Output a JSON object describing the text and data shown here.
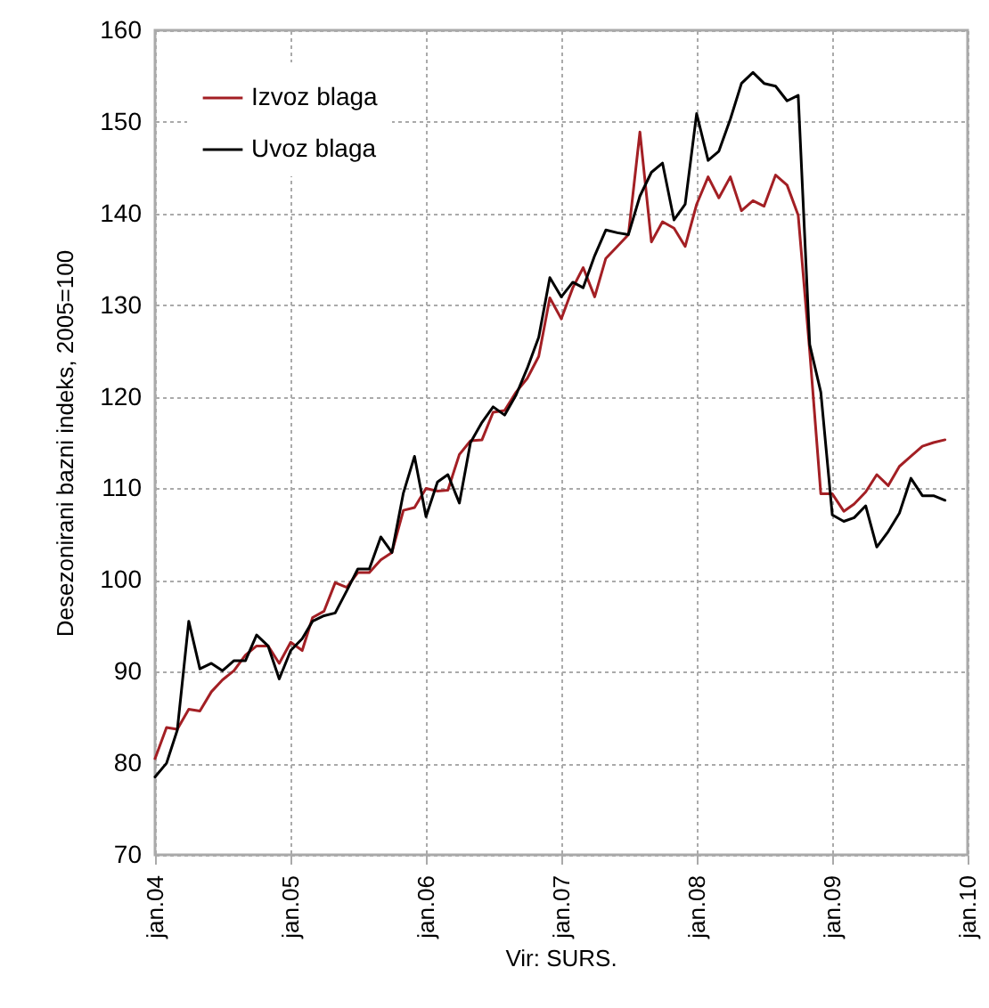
{
  "chart_data": {
    "type": "line",
    "ylabel": "Desezonirani bazni indeks, 2005=100",
    "annotations": [
      "Vir: SURS."
    ],
    "x": [
      "2004-01",
      "2004-02",
      "2004-03",
      "2004-04",
      "2004-05",
      "2004-06",
      "2004-07",
      "2004-08",
      "2004-09",
      "2004-10",
      "2004-11",
      "2004-12",
      "2005-01",
      "2005-02",
      "2005-03",
      "2005-04",
      "2005-05",
      "2005-06",
      "2005-07",
      "2005-08",
      "2005-09",
      "2005-10",
      "2005-11",
      "2005-12",
      "2006-01",
      "2006-02",
      "2006-03",
      "2006-04",
      "2006-05",
      "2006-06",
      "2006-07",
      "2006-08",
      "2006-09",
      "2006-10",
      "2006-11",
      "2006-12",
      "2007-01",
      "2007-02",
      "2007-03",
      "2007-04",
      "2007-05",
      "2007-06",
      "2007-07",
      "2007-08",
      "2007-09",
      "2007-10",
      "2007-11",
      "2007-12",
      "2008-01",
      "2008-02",
      "2008-03",
      "2008-04",
      "2008-05",
      "2008-06",
      "2008-07",
      "2008-08",
      "2008-09",
      "2008-10",
      "2008-11",
      "2008-12",
      "2009-01",
      "2009-02",
      "2009-03",
      "2009-04",
      "2009-05",
      "2009-06",
      "2009-07",
      "2009-08",
      "2009-09",
      "2009-10",
      "2009-11"
    ],
    "series": [
      {
        "name": "Izvoz blaga",
        "color": "#a31f24",
        "values": [
          80.5,
          83.9,
          83.7,
          85.9,
          85.7,
          87.8,
          89.1,
          90.1,
          91.8,
          92.8,
          92.8,
          90.9,
          93.2,
          92.3,
          95.9,
          96.6,
          99.7,
          99.2,
          100.8,
          100.8,
          102.2,
          103.0,
          107.6,
          107.9,
          110.0,
          109.7,
          109.8,
          113.7,
          115.2,
          115.3,
          118.3,
          118.5,
          120.5,
          122.0,
          124.4,
          130.8,
          128.5,
          131.9,
          134.1,
          130.9,
          135.1,
          136.4,
          137.7,
          148.9,
          136.9,
          139.1,
          138.4,
          136.4,
          141.0,
          144.0,
          141.7,
          144.0,
          140.3,
          141.4,
          140.8,
          144.2,
          143.1,
          139.8,
          125.0,
          109.4,
          109.4,
          107.5,
          108.3,
          109.6,
          111.5,
          110.3,
          112.4,
          113.5,
          114.6,
          115.0,
          115.3
        ]
      },
      {
        "name": "Uvoz blaga",
        "color": "#000000",
        "values": [
          78.5,
          80.0,
          83.6,
          95.5,
          90.3,
          90.9,
          90.1,
          91.2,
          91.2,
          94.0,
          92.8,
          89.2,
          92.3,
          93.6,
          95.5,
          96.1,
          96.4,
          98.8,
          101.2,
          101.2,
          104.7,
          103.0,
          109.5,
          113.5,
          106.9,
          110.7,
          111.5,
          108.4,
          115.0,
          117.2,
          118.9,
          118.0,
          120.2,
          123.1,
          126.5,
          133.0,
          130.9,
          132.5,
          131.9,
          135.4,
          138.2,
          137.9,
          137.7,
          141.9,
          144.5,
          145.5,
          139.3,
          141.0,
          150.9,
          145.8,
          146.8,
          150.3,
          154.2,
          155.4,
          154.2,
          153.9,
          152.3,
          152.9,
          125.7,
          120.5,
          107.1,
          106.4,
          106.8,
          108.1,
          103.6,
          105.3,
          107.3,
          111.1,
          109.2,
          109.2,
          108.7
        ]
      }
    ],
    "xlim": [
      "2004-01",
      "2010-01"
    ],
    "xticks": [
      {
        "value": "2004-01",
        "label": "jan.04"
      },
      {
        "value": "2005-01",
        "label": "jan.05"
      },
      {
        "value": "2006-01",
        "label": "jan.06"
      },
      {
        "value": "2007-01",
        "label": "jan.07"
      },
      {
        "value": "2008-01",
        "label": "jan.08"
      },
      {
        "value": "2009-01",
        "label": "jan.09"
      },
      {
        "value": "2010-01",
        "label": "jan.10"
      }
    ],
    "ylim": [
      70,
      160
    ],
    "yticks": [
      70,
      80,
      90,
      100,
      110,
      120,
      130,
      140,
      150,
      160
    ],
    "grid": true,
    "legend": "top left",
    "line_style": "solid",
    "marker": "none"
  }
}
